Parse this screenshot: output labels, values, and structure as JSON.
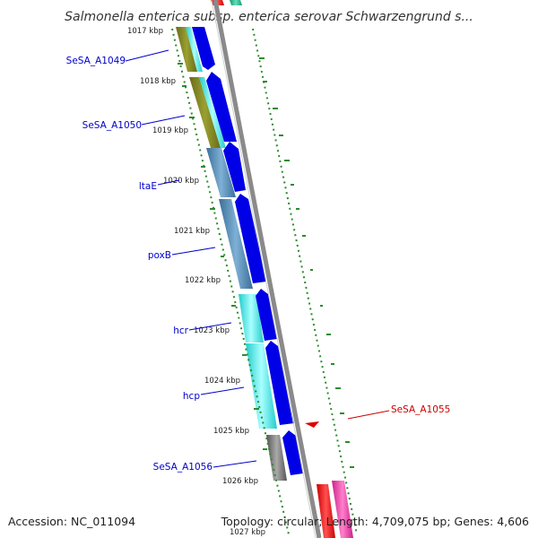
{
  "title": "Salmonella enterica subsp. enterica serovar Schwarzengrund s...",
  "footer": {
    "accession": "Accession: NC_011094",
    "summary": "Topology: circular; Length: 4,709,075 bp; Genes: 4,606"
  },
  "ticks": [
    "1017 kbp",
    "1018 kbp",
    "1019 kbp",
    "1020 kbp",
    "1021 kbp",
    "1022 kbp",
    "1023 kbp",
    "1024 kbp",
    "1025 kbp",
    "1026 kbp",
    "1027 kbp"
  ],
  "gene_labels": [
    {
      "text": "SeSA_A1049",
      "color": "#0000cc"
    },
    {
      "text": "SeSA_A1050",
      "color": "#0000cc"
    },
    {
      "text": "ltaE",
      "color": "#0000cc"
    },
    {
      "text": "poxB",
      "color": "#0000cc"
    },
    {
      "text": "hcr",
      "color": "#0000cc"
    },
    {
      "text": "hcp",
      "color": "#0000cc"
    },
    {
      "text": "SeSA_A1056",
      "color": "#0000cc"
    },
    {
      "text": "SeSA_A1055",
      "color": "#cc0000"
    }
  ],
  "colors": {
    "forward_cds": "#0000e6",
    "reverse_marker": "#e00000",
    "backbone": "#8a8a8a",
    "gc_skew": "#2e8b2e"
  }
}
